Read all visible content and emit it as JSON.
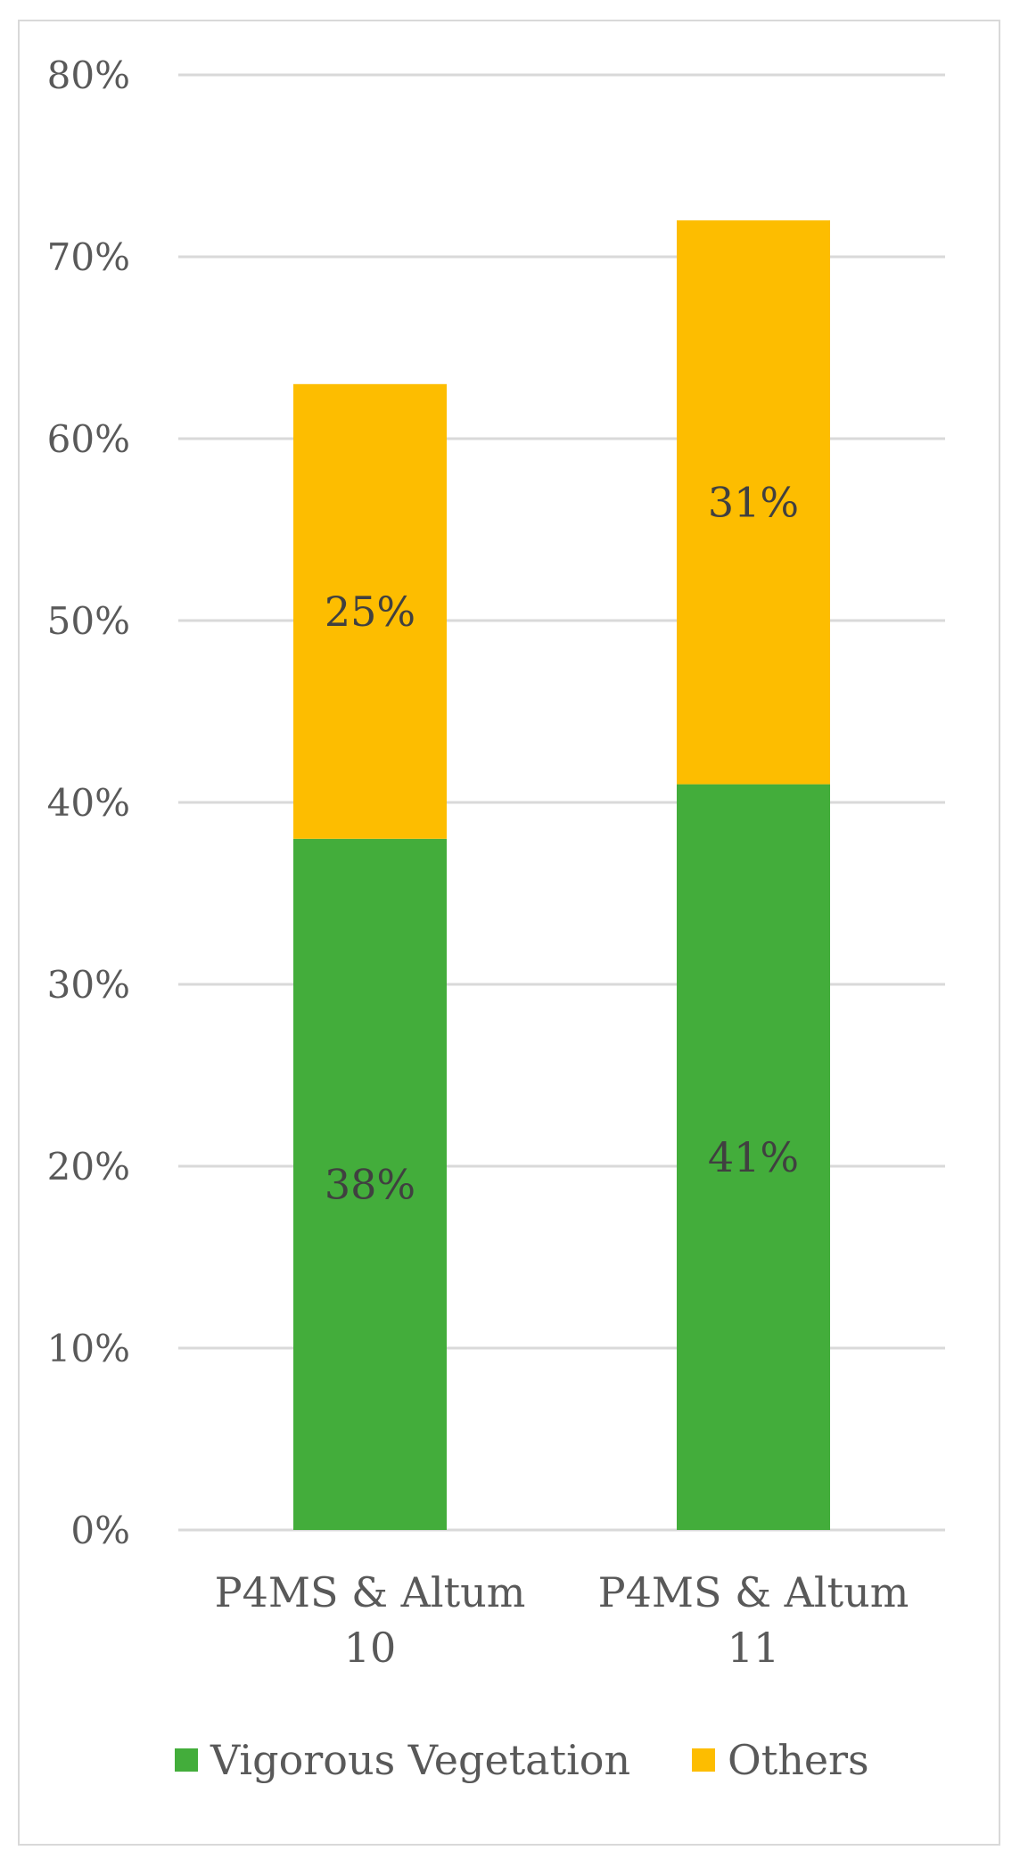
{
  "chart_data": {
    "type": "bar",
    "stacked": true,
    "categories": [
      [
        "P4MS & Altum",
        "10"
      ],
      [
        "P4MS & Altum",
        "11"
      ]
    ],
    "series": [
      {
        "name": "Vigorous Vegetation",
        "values": [
          38,
          41
        ],
        "labels": [
          "38%",
          "41%"
        ],
        "color": "#43ad3b"
      },
      {
        "name": "Others",
        "values": [
          25,
          31
        ],
        "labels": [
          "25%",
          "31%"
        ],
        "color": "#fdbd00"
      }
    ],
    "y_ticks": [
      "0%",
      "10%",
      "20%",
      "30%",
      "40%",
      "50%",
      "60%",
      "70%",
      "80%"
    ],
    "y_tick_values": [
      0,
      10,
      20,
      30,
      40,
      50,
      60,
      70,
      80
    ],
    "ylim": [
      0,
      80
    ],
    "grid": true,
    "grid_color": "#d9d9d9",
    "legend_position": "bottom"
  }
}
